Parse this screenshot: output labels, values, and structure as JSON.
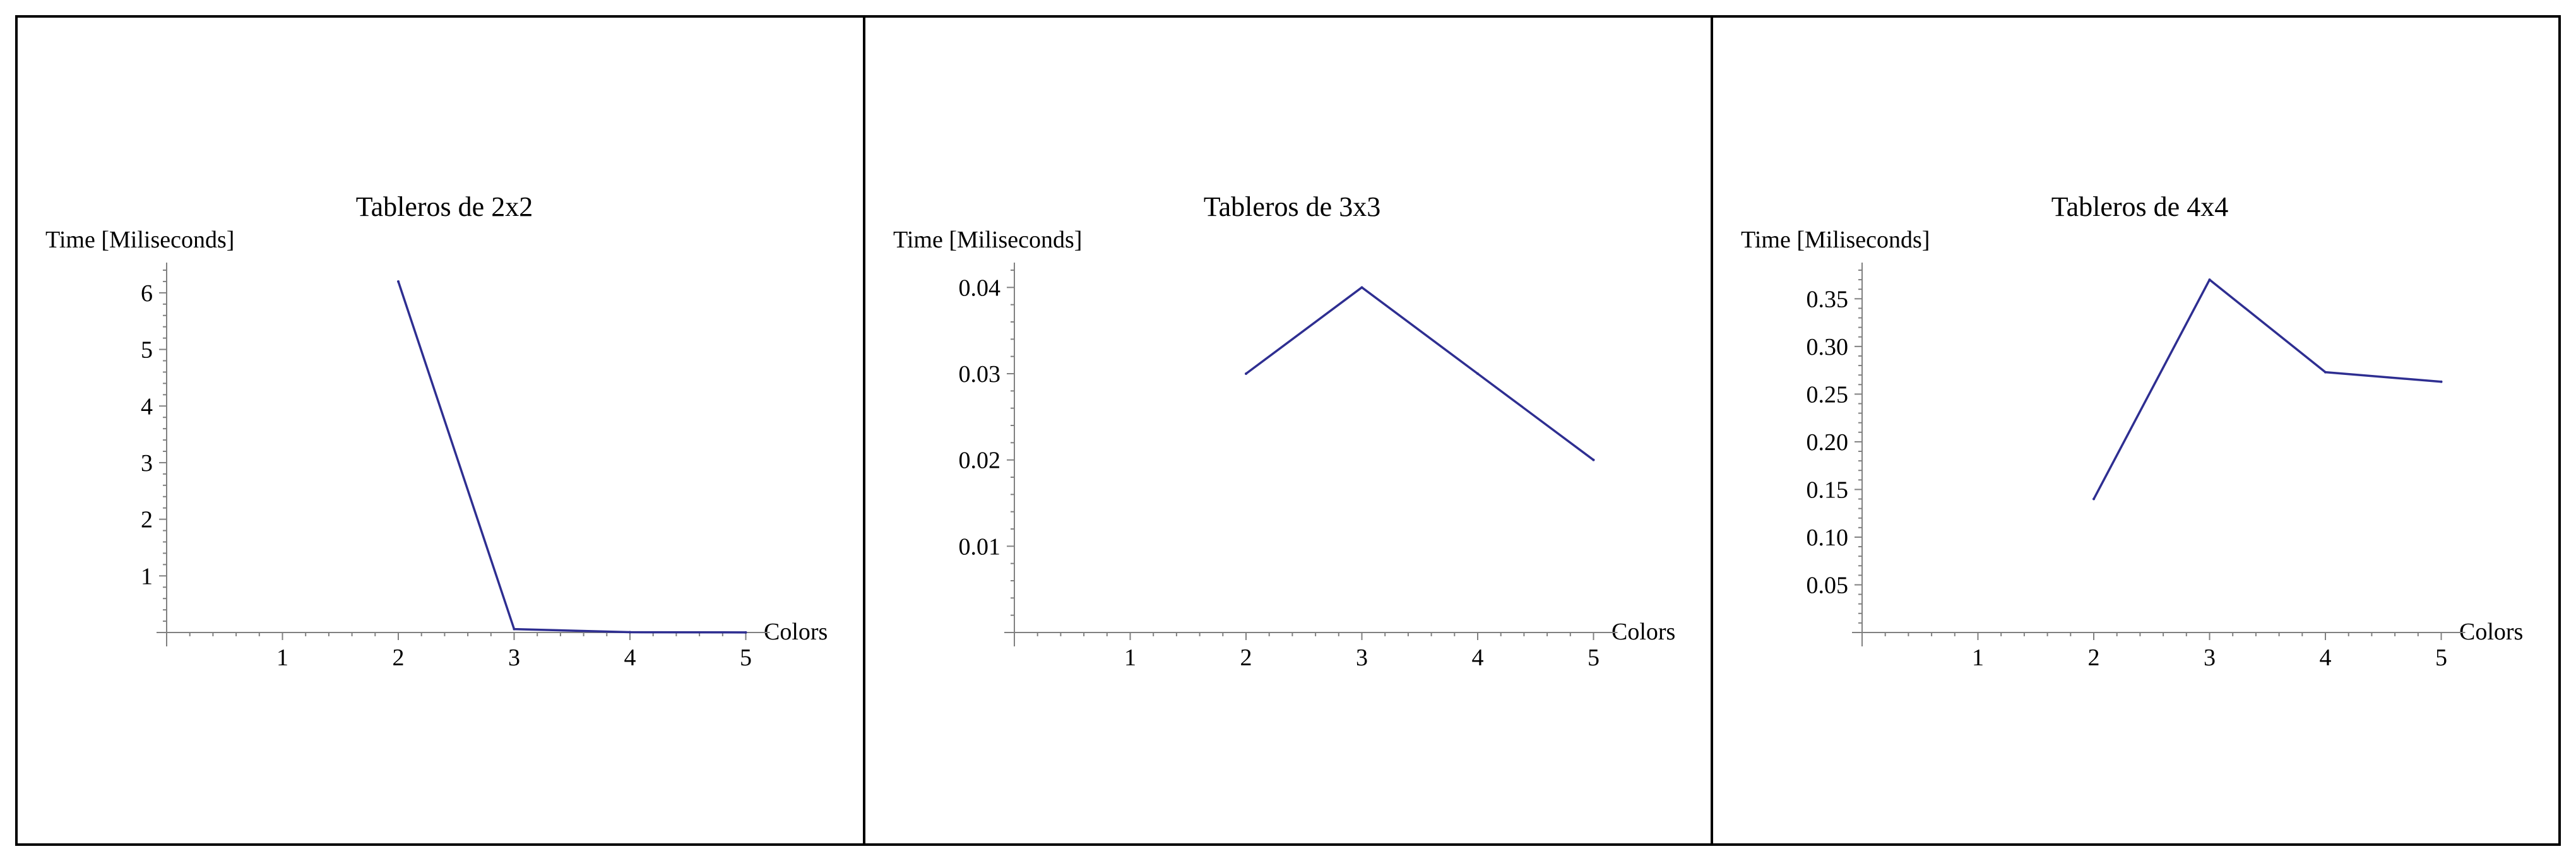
{
  "style": {
    "line_color": "#2e2e91",
    "axis_color": "#808080",
    "frame_color": "#000000",
    "background": "#ffffff"
  },
  "chart_data": [
    {
      "type": "line",
      "title": "Tableros de 2x2",
      "ylabel": "Time [Miliseconds]",
      "xlabel": "Colors",
      "x": [
        2,
        3,
        4,
        5
      ],
      "y": [
        6.2,
        0.06,
        0.005,
        0.002
      ],
      "xlim": [
        0,
        5
      ],
      "ylim": [
        0,
        6.4
      ],
      "xticks": [
        1,
        2,
        3,
        4,
        5
      ],
      "yticks": [
        1,
        2,
        3,
        4,
        5,
        6
      ],
      "ytick_labels": [
        "1",
        "2",
        "3",
        "4",
        "5",
        "6"
      ],
      "grid": false,
      "legend": "none"
    },
    {
      "type": "line",
      "title": "Tableros de 3x3",
      "ylabel": "Time [Miliseconds]",
      "xlabel": "Colors",
      "x": [
        2,
        3,
        4,
        5
      ],
      "y": [
        0.03,
        0.04,
        0.03,
        0.02
      ],
      "xlim": [
        0,
        5
      ],
      "ylim": [
        0,
        0.042
      ],
      "xticks": [
        1,
        2,
        3,
        4,
        5
      ],
      "yticks": [
        0.01,
        0.02,
        0.03,
        0.04
      ],
      "ytick_labels": [
        "0.01",
        "0.02",
        "0.03",
        "0.04"
      ],
      "grid": false,
      "legend": "none"
    },
    {
      "type": "line",
      "title": "Tableros de 4x4",
      "ylabel": "Time [Miliseconds]",
      "xlabel": "Colors",
      "x": [
        2,
        3,
        4,
        5
      ],
      "y": [
        0.14,
        0.37,
        0.273,
        0.263
      ],
      "xlim": [
        0,
        5
      ],
      "ylim": [
        0,
        0.38
      ],
      "xticks": [
        1,
        2,
        3,
        4,
        5
      ],
      "yticks": [
        0.05,
        0.1,
        0.15,
        0.2,
        0.25,
        0.3,
        0.35
      ],
      "ytick_labels": [
        "0.05",
        "0.10",
        "0.15",
        "0.20",
        "0.25",
        "0.30",
        "0.35"
      ],
      "grid": false,
      "legend": "none"
    }
  ]
}
